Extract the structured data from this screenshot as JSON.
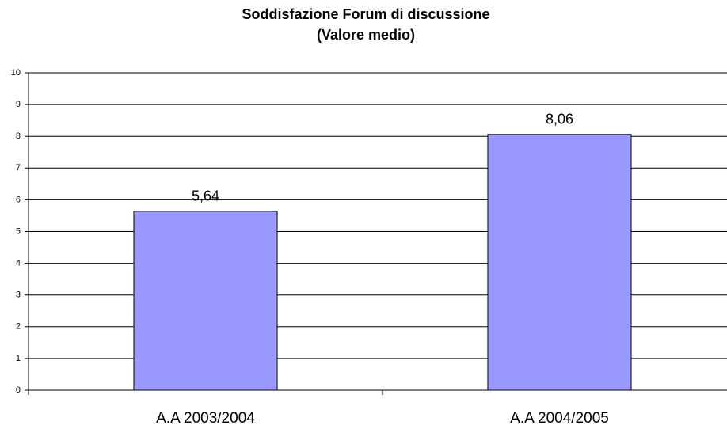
{
  "chart_data": {
    "type": "bar",
    "title": "Soddisfazione Forum di discussione",
    "subtitle": "(Valore medio)",
    "categories": [
      "A.A 2003/2004",
      "A.A 2004/2005"
    ],
    "values": [
      5.64,
      8.06
    ],
    "value_labels": [
      "5,64",
      "8,06"
    ],
    "color": "#9999ff",
    "ylim": [
      0,
      10
    ],
    "yticks": [
      0,
      1,
      2,
      3,
      4,
      5,
      6,
      7,
      8,
      9,
      10
    ],
    "grid": true
  }
}
